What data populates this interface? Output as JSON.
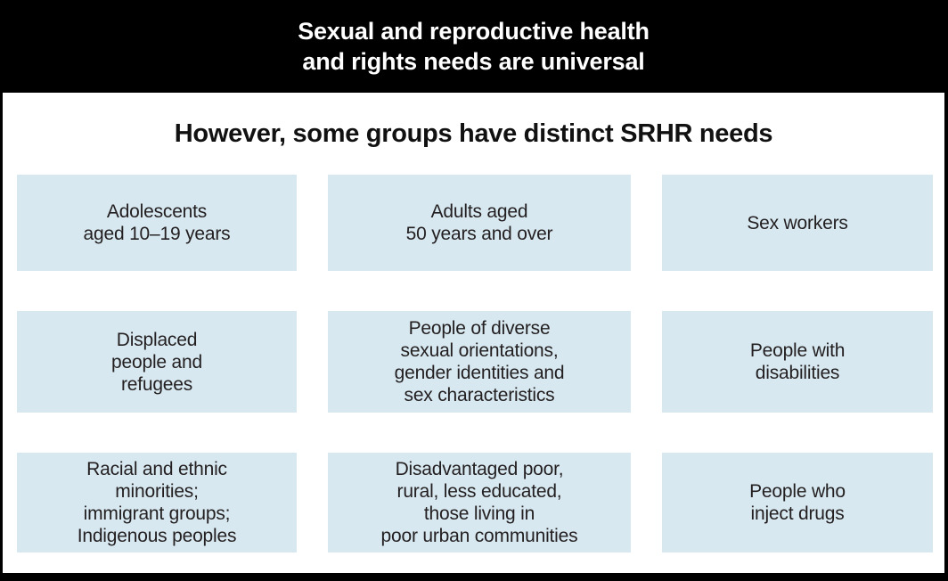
{
  "header": {
    "title": "Sexual and reproductive health\nand rights needs are universal"
  },
  "subtitle": "However, some groups have distinct SRHR needs",
  "groups": [
    {
      "id": "adolescents",
      "label": "Adolescents\naged 10–19 years"
    },
    {
      "id": "adults-50-over",
      "label": "Adults aged\n50 years and over"
    },
    {
      "id": "sex-workers",
      "label": "Sex workers"
    },
    {
      "id": "displaced-refugees",
      "label": "Displaced\npeople and\nrefugees"
    },
    {
      "id": "diverse-sogi",
      "label": "People of diverse\nsexual orientations,\ngender identities and\nsex characteristics"
    },
    {
      "id": "disabilities",
      "label": "People with\ndisabilities"
    },
    {
      "id": "racial-ethnic-minorities",
      "label": "Racial and ethnic\nminorities;\nimmigrant groups;\nIndigenous peoples"
    },
    {
      "id": "disadvantaged-poor",
      "label": "Disadvantaged poor,\nrural, less educated,\nthose living in\npoor urban communities"
    },
    {
      "id": "inject-drugs",
      "label": "People who\ninject drugs"
    }
  ],
  "colors": {
    "band_bg": "#000000",
    "band_text": "#ffffff",
    "box_bg": "#d7e8f0",
    "box_text": "#231f20"
  }
}
